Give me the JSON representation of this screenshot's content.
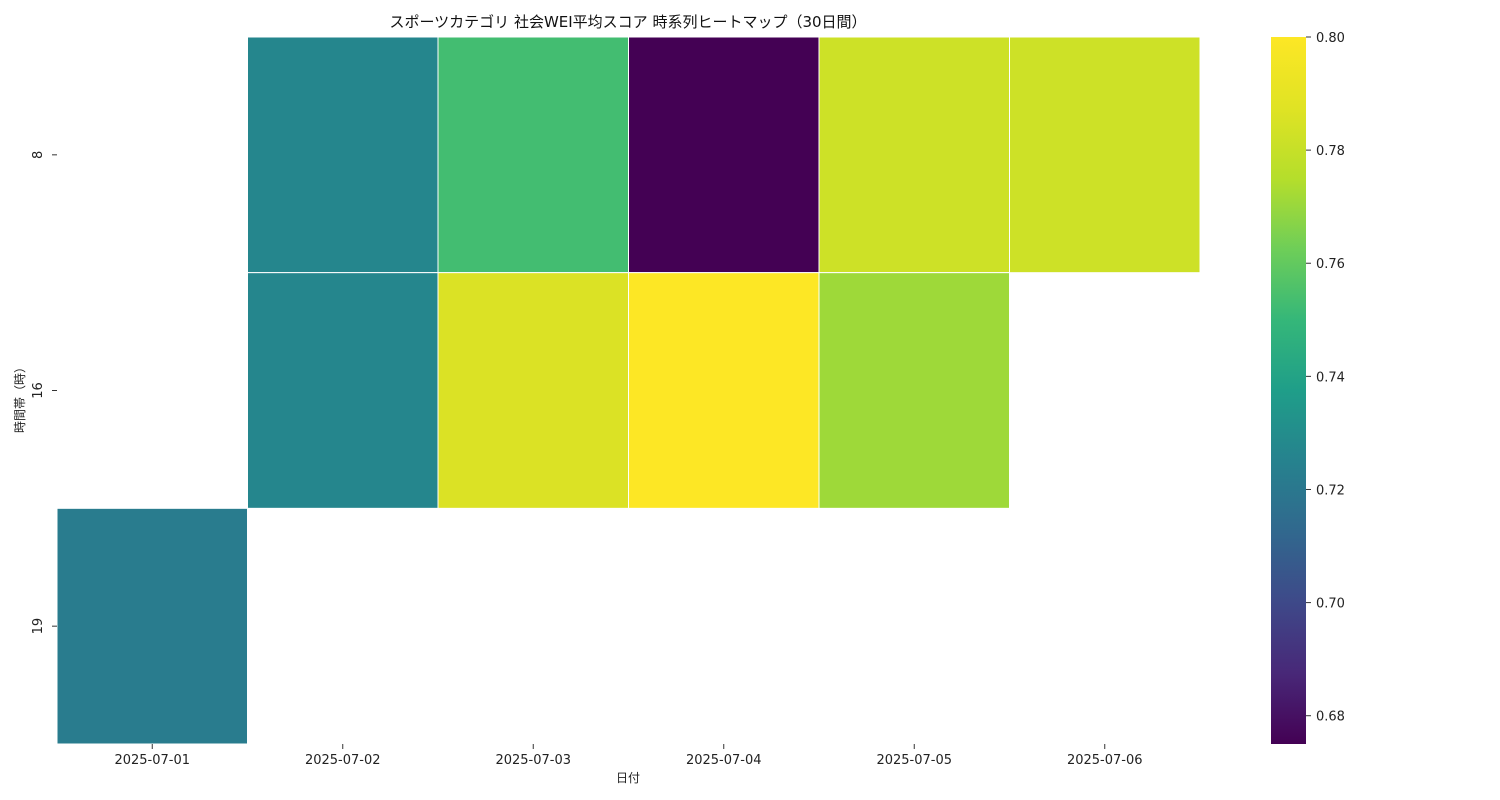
{
  "chart_data": {
    "type": "heatmap",
    "title": "スポーツカテゴリ 社会WEI平均スコア 時系列ヒートマップ（30日間）",
    "xlabel": "日付",
    "ylabel": "時間帯（時）",
    "x_categories": [
      "2025-07-01",
      "2025-07-02",
      "2025-07-03",
      "2025-07-04",
      "2025-07-05",
      "2025-07-06"
    ],
    "y_categories": [
      "8",
      "16",
      "19"
    ],
    "values": [
      [
        null,
        0.727,
        0.753,
        0.675,
        0.782,
        0.782
      ],
      [
        null,
        0.727,
        0.786,
        0.8,
        0.771,
        null
      ],
      [
        0.722,
        null,
        null,
        null,
        null,
        null
      ]
    ],
    "colormap": "viridis",
    "colorbar": {
      "vmin": 0.675,
      "vmax": 0.8,
      "ticks": [
        0.68,
        0.7,
        0.72,
        0.74,
        0.76,
        0.78,
        0.8
      ],
      "tick_labels": [
        "0.68",
        "0.70",
        "0.72",
        "0.74",
        "0.76",
        "0.78",
        "0.80"
      ]
    },
    "missing_color": "#ffffff",
    "cell_border_color": "#ffffff"
  }
}
